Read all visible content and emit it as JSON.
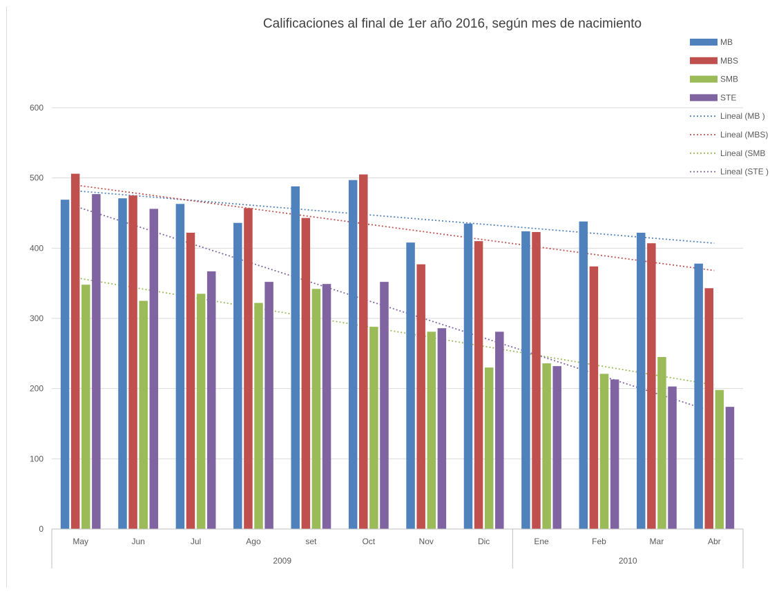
{
  "chart_data": {
    "type": "bar",
    "title": "Calificaciones al final de 1er año 2016,  según mes de nacimiento",
    "xlabel": "",
    "ylabel": "",
    "ylim": [
      0,
      600
    ],
    "yticks": [
      0,
      100,
      200,
      300,
      400,
      500,
      600
    ],
    "categories": [
      "May",
      "Jun",
      "Jul",
      "Ago",
      "set",
      "Oct",
      "Nov",
      "Dic",
      "Ene",
      "Feb",
      "Mar",
      "Abr"
    ],
    "groups": [
      {
        "label": "2009",
        "count": 8
      },
      {
        "label": "2010",
        "count": 4
      }
    ],
    "series": [
      {
        "name": "MB",
        "color": "#4f81bd",
        "values": [
          469,
          471,
          463,
          436,
          488,
          497,
          408,
          435,
          424,
          438,
          422,
          378
        ]
      },
      {
        "name": "MBS",
        "color": "#c0504d",
        "values": [
          506,
          475,
          422,
          457,
          443,
          505,
          377,
          410,
          423,
          374,
          407,
          343
        ]
      },
      {
        "name": "SMB",
        "color": "#9bbb59",
        "values": [
          348,
          325,
          335,
          322,
          342,
          288,
          281,
          230,
          236,
          221,
          245,
          198
        ]
      },
      {
        "name": "STE",
        "color": "#8064a2",
        "values": [
          477,
          456,
          367,
          352,
          349,
          352,
          286,
          281,
          232,
          213,
          203,
          174
        ]
      }
    ],
    "trendlines": [
      {
        "name": "Lineal (MB )",
        "color": "#4f81bd",
        "series": "MB"
      },
      {
        "name": "Lineal (MBS)",
        "color": "#c0504d",
        "series": "MBS"
      },
      {
        "name": "Lineal (SMB",
        "color": "#9bbb59",
        "series": "SMB"
      },
      {
        "name": "Lineal (STE )",
        "color": "#8064a2",
        "series": "STE"
      }
    ],
    "grid": true,
    "legend_position": "top-right"
  }
}
